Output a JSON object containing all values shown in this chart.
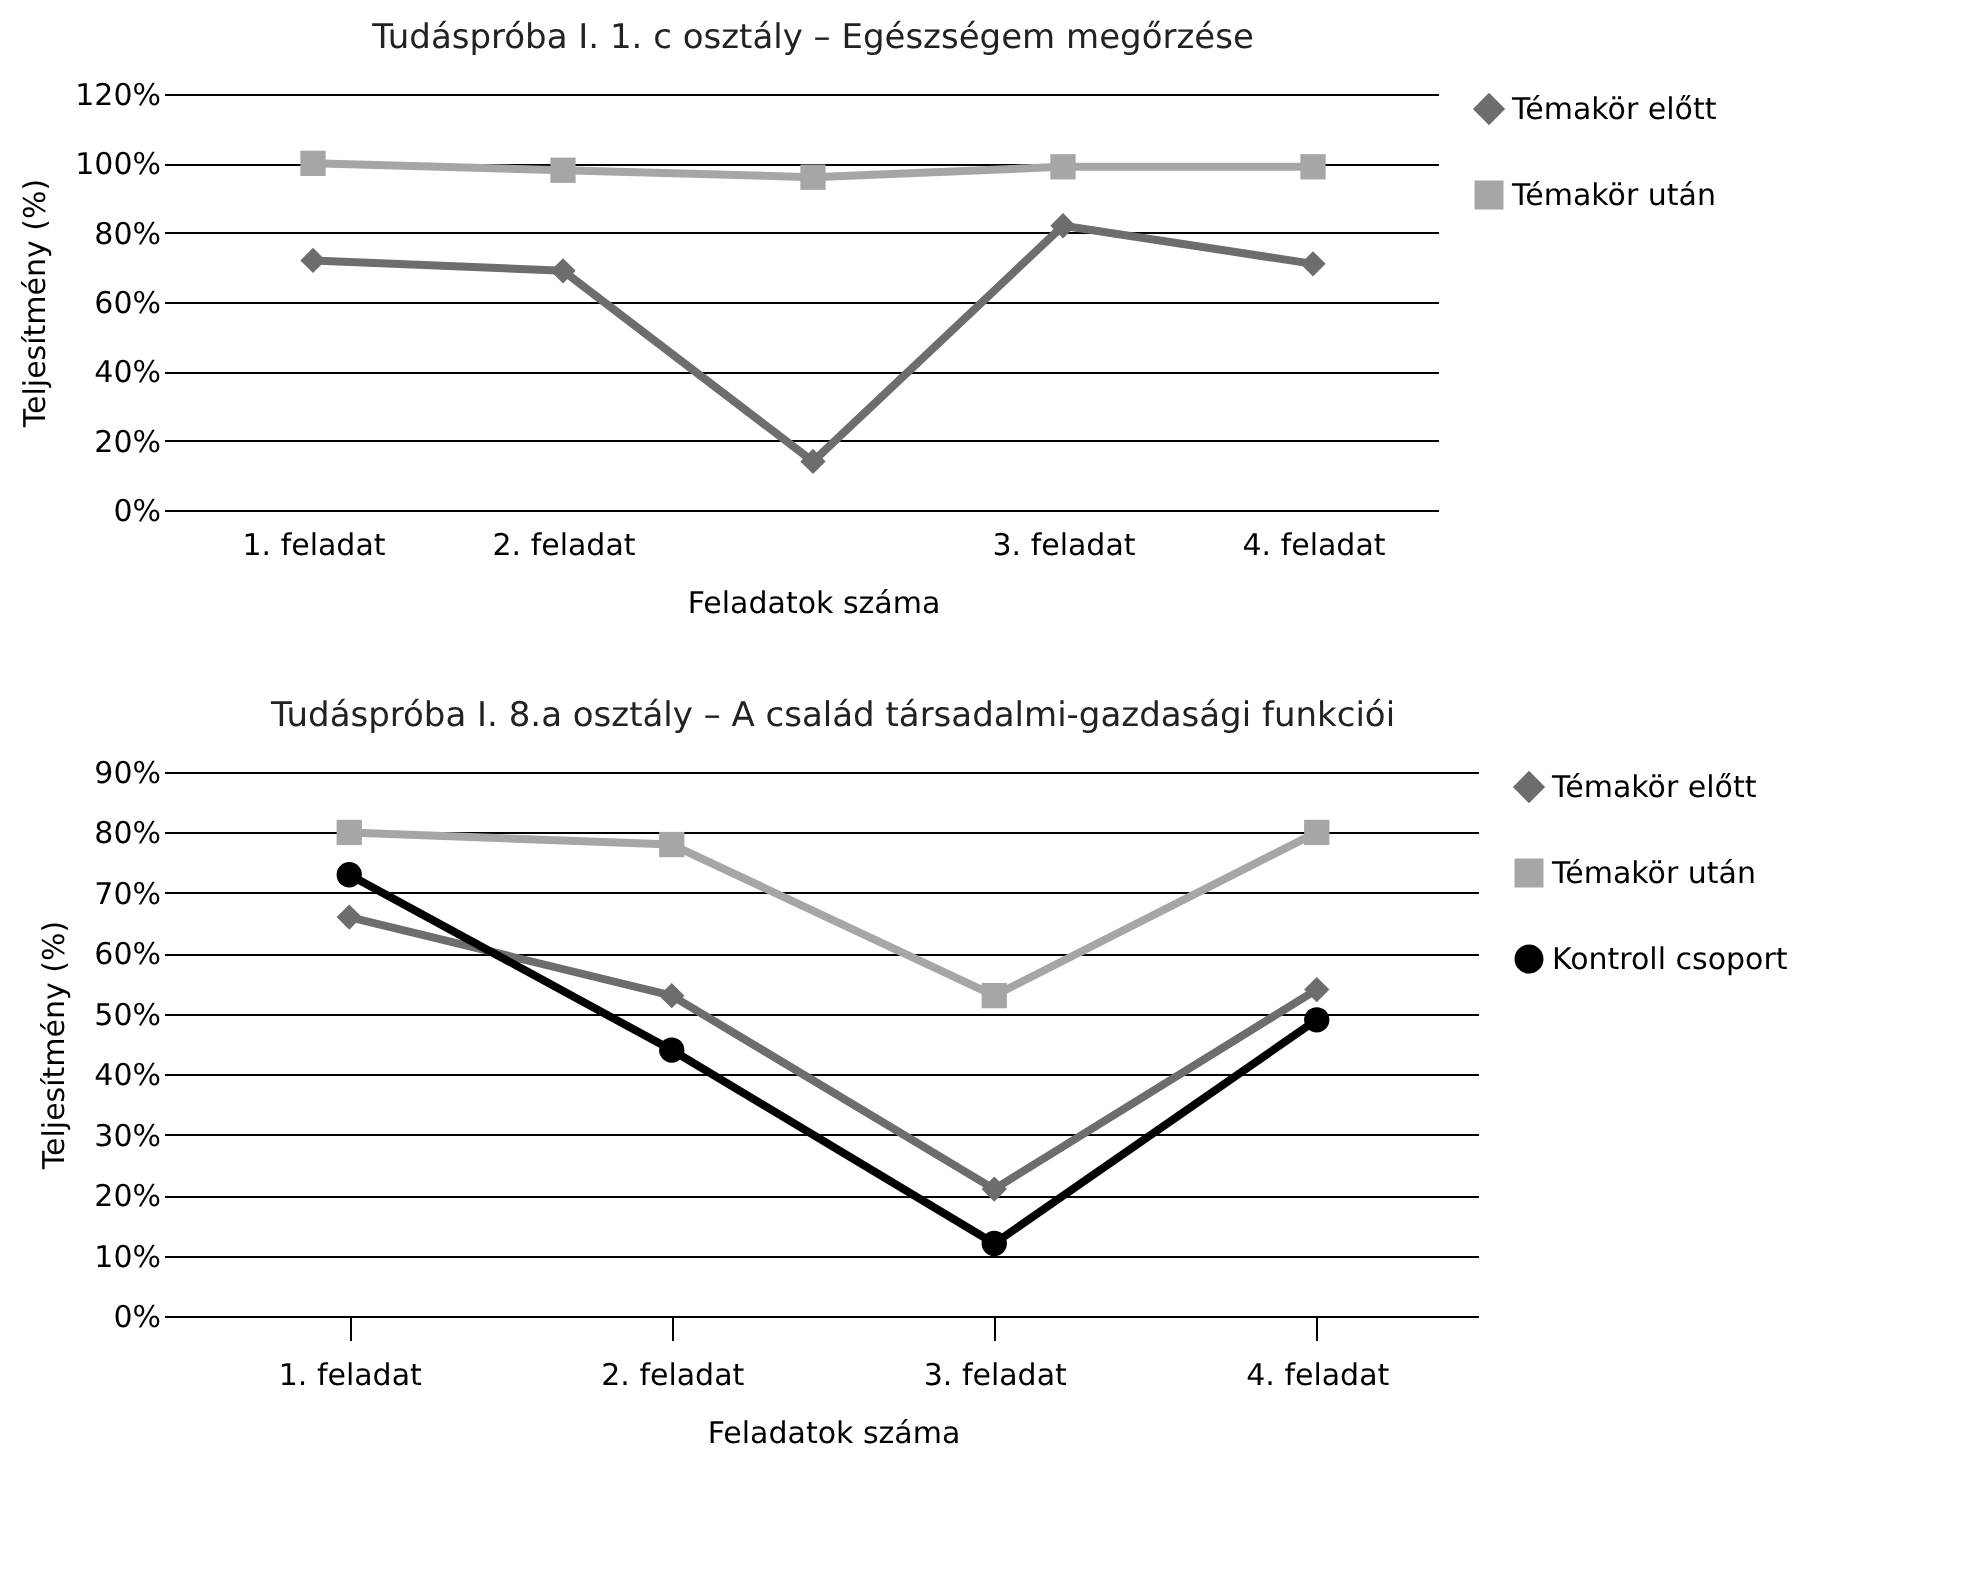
{
  "chart_data": [
    {
      "type": "line",
      "title": "Tudáspróba I.  1. c osztály – Egészségem megőrzése",
      "xlabel": "Feladatok száma",
      "ylabel": "Teljesítmény (%)",
      "categories": [
        "1. feladat",
        "2. feladat",
        null,
        "3. feladat",
        "4. feladat"
      ],
      "series": [
        {
          "name": "Témakör előtt",
          "color": "#6d6d6d",
          "marker": "diamond",
          "values": [
            72,
            69,
            14,
            82,
            71
          ]
        },
        {
          "name": "Témakör után",
          "color": "#a6a6a6",
          "marker": "square",
          "values": [
            100,
            98,
            96,
            99,
            99
          ]
        }
      ],
      "ylim": [
        0,
        120
      ],
      "yticks": [
        {
          "value": 0,
          "label": "0%"
        },
        {
          "value": 20,
          "label": "20%"
        },
        {
          "value": 40,
          "label": "40%"
        },
        {
          "value": 60,
          "label": "60%"
        },
        {
          "value": 80,
          "label": "80%"
        },
        {
          "value": 100,
          "label": "100%"
        },
        {
          "value": 120,
          "label": "120%"
        }
      ],
      "grid": "y",
      "legend": "right"
    },
    {
      "type": "line",
      "title": "Tudáspróba I.  8.a osztály – A család társadalmi-gazdasági funkciói",
      "xlabel": "Feladatok száma",
      "ylabel": "Teljesítmény (%)",
      "categories": [
        "1. feladat",
        "2. feladat",
        "3. feladat",
        "4. feladat"
      ],
      "series": [
        {
          "name": "Témakör előtt",
          "color": "#6d6d6d",
          "marker": "diamond",
          "values": [
            66,
            53,
            21,
            54
          ]
        },
        {
          "name": "Témakör után",
          "color": "#a6a6a6",
          "marker": "square",
          "values": [
            80,
            78,
            53,
            80
          ]
        },
        {
          "name": "Kontroll csoport",
          "color": "#000000",
          "marker": "circle",
          "values": [
            73,
            44,
            12,
            49
          ]
        }
      ],
      "ylim": [
        0,
        90
      ],
      "yticks": [
        {
          "value": 0,
          "label": "0%"
        },
        {
          "value": 10,
          "label": "10%"
        },
        {
          "value": 20,
          "label": "20%"
        },
        {
          "value": 30,
          "label": "30%"
        },
        {
          "value": 40,
          "label": "40%"
        },
        {
          "value": 50,
          "label": "50%"
        },
        {
          "value": 60,
          "label": "60%"
        },
        {
          "value": 70,
          "label": "70%"
        },
        {
          "value": 80,
          "label": "80%"
        },
        {
          "value": 90,
          "label": "90%"
        }
      ],
      "grid": "y",
      "legend": "right"
    }
  ]
}
